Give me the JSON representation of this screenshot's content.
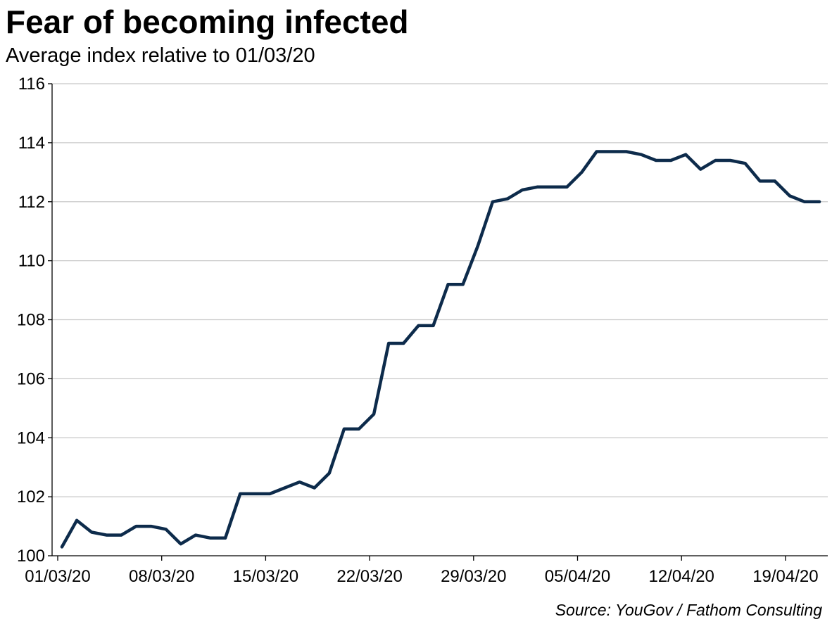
{
  "title": "Fear of becoming infected",
  "subtitle": "Average index relative to 01/03/20",
  "source": "Source: YouGov / Fathom Consulting",
  "colors": {
    "line": "#0d2b4b",
    "grid": "#c8c8c8",
    "axis": "#000000"
  },
  "chart_data": {
    "type": "line",
    "title": "Fear of becoming infected",
    "subtitle": "Average index relative to 01/03/20",
    "xlabel": "",
    "ylabel": "",
    "ylim": [
      100,
      116
    ],
    "yticks": [
      100,
      102,
      104,
      106,
      108,
      110,
      112,
      114,
      116
    ],
    "xticks": [
      "01/03/20",
      "08/03/20",
      "15/03/20",
      "22/03/20",
      "29/03/20",
      "05/04/20",
      "12/04/20",
      "19/04/20"
    ],
    "grid": "horizontal",
    "legend": "none",
    "series": [
      {
        "x": [
          "01/03/20",
          "02/03/20",
          "03/03/20",
          "04/03/20",
          "05/03/20",
          "06/03/20",
          "07/03/20",
          "08/03/20",
          "09/03/20",
          "10/03/20",
          "11/03/20",
          "12/03/20",
          "13/03/20",
          "14/03/20",
          "15/03/20",
          "16/03/20",
          "17/03/20",
          "18/03/20",
          "19/03/20",
          "20/03/20",
          "21/03/20",
          "22/03/20",
          "23/03/20",
          "24/03/20",
          "25/03/20",
          "26/03/20",
          "27/03/20",
          "28/03/20",
          "29/03/20",
          "30/03/20",
          "31/03/20",
          "01/04/20",
          "02/04/20",
          "03/04/20",
          "04/04/20",
          "05/04/20",
          "06/04/20",
          "07/04/20",
          "08/04/20",
          "09/04/20",
          "10/04/20",
          "11/04/20",
          "12/04/20",
          "13/04/20",
          "14/04/20",
          "15/04/20",
          "16/04/20",
          "17/04/20",
          "18/04/20",
          "19/04/20",
          "20/04/20",
          "21/04/20"
        ],
        "values": [
          100.3,
          101.2,
          100.8,
          100.7,
          100.7,
          101.0,
          101.0,
          100.9,
          100.4,
          100.7,
          100.6,
          100.6,
          102.1,
          102.1,
          102.1,
          102.3,
          102.5,
          102.3,
          102.8,
          104.3,
          104.3,
          104.8,
          107.2,
          107.2,
          107.8,
          107.8,
          109.2,
          109.2,
          110.5,
          112.0,
          112.1,
          112.4,
          112.5,
          112.5,
          112.5,
          113.0,
          113.7,
          113.7,
          113.7,
          113.6,
          113.4,
          113.4,
          113.6,
          113.1,
          113.4,
          113.4,
          113.3,
          112.7,
          112.7,
          112.2,
          112.0,
          112.0
        ]
      }
    ]
  }
}
